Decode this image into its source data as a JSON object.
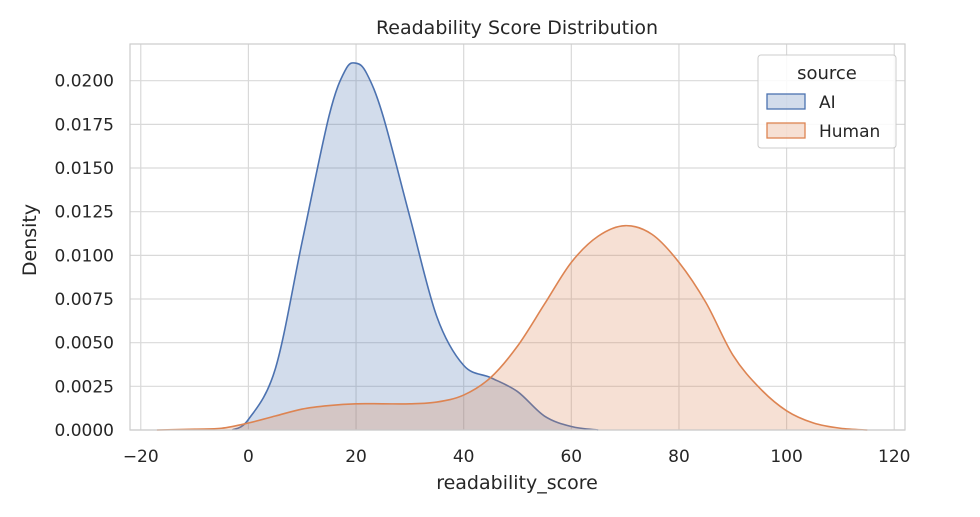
{
  "chart_data": {
    "type": "area",
    "title": "Readability Score Distribution",
    "xlabel": "readability_score",
    "ylabel": "Density",
    "xlim": [
      -22,
      122
    ],
    "ylim": [
      0,
      0.0221
    ],
    "xticks": [
      -20,
      0,
      20,
      40,
      60,
      80,
      100,
      120
    ],
    "xtick_labels": [
      "−20",
      "0",
      "20",
      "40",
      "60",
      "80",
      "100",
      "120"
    ],
    "yticks": [
      0,
      0.0025,
      0.005,
      0.0075,
      0.01,
      0.0125,
      0.015,
      0.0175,
      0.02
    ],
    "ytick_labels": [
      "0.0000",
      "0.0025",
      "0.0050",
      "0.0075",
      "0.0100",
      "0.0125",
      "0.0150",
      "0.0175",
      "0.0200"
    ],
    "grid": true,
    "legend": {
      "title": "source",
      "position": "top-right",
      "entries": [
        "AI",
        "Human"
      ]
    },
    "series": [
      {
        "name": "AI",
        "color": "#4c72b0",
        "x": [
          -3,
          0,
          5,
          10,
          15,
          18,
          20,
          22,
          25,
          30,
          35,
          40,
          45,
          50,
          55,
          60,
          65
        ],
        "y": [
          0.0,
          0.0006,
          0.0035,
          0.0108,
          0.018,
          0.0206,
          0.021,
          0.0204,
          0.018,
          0.0122,
          0.0065,
          0.0037,
          0.003,
          0.0022,
          0.0008,
          0.0002,
          0.0
        ]
      },
      {
        "name": "Human",
        "color": "#dd8452",
        "x": [
          -17,
          -10,
          -5,
          0,
          5,
          10,
          15,
          20,
          25,
          30,
          35,
          40,
          45,
          50,
          55,
          60,
          65,
          70,
          75,
          80,
          85,
          90,
          95,
          100,
          105,
          110,
          115
        ],
        "y": [
          0.0,
          5e-05,
          0.0001,
          0.0004,
          0.0008,
          0.0012,
          0.0014,
          0.0015,
          0.0015,
          0.0015,
          0.0016,
          0.002,
          0.003,
          0.0048,
          0.0072,
          0.0096,
          0.0111,
          0.0117,
          0.0112,
          0.0096,
          0.0073,
          0.0043,
          0.0024,
          0.0011,
          0.0004,
          0.0001,
          0.0
        ]
      }
    ]
  }
}
